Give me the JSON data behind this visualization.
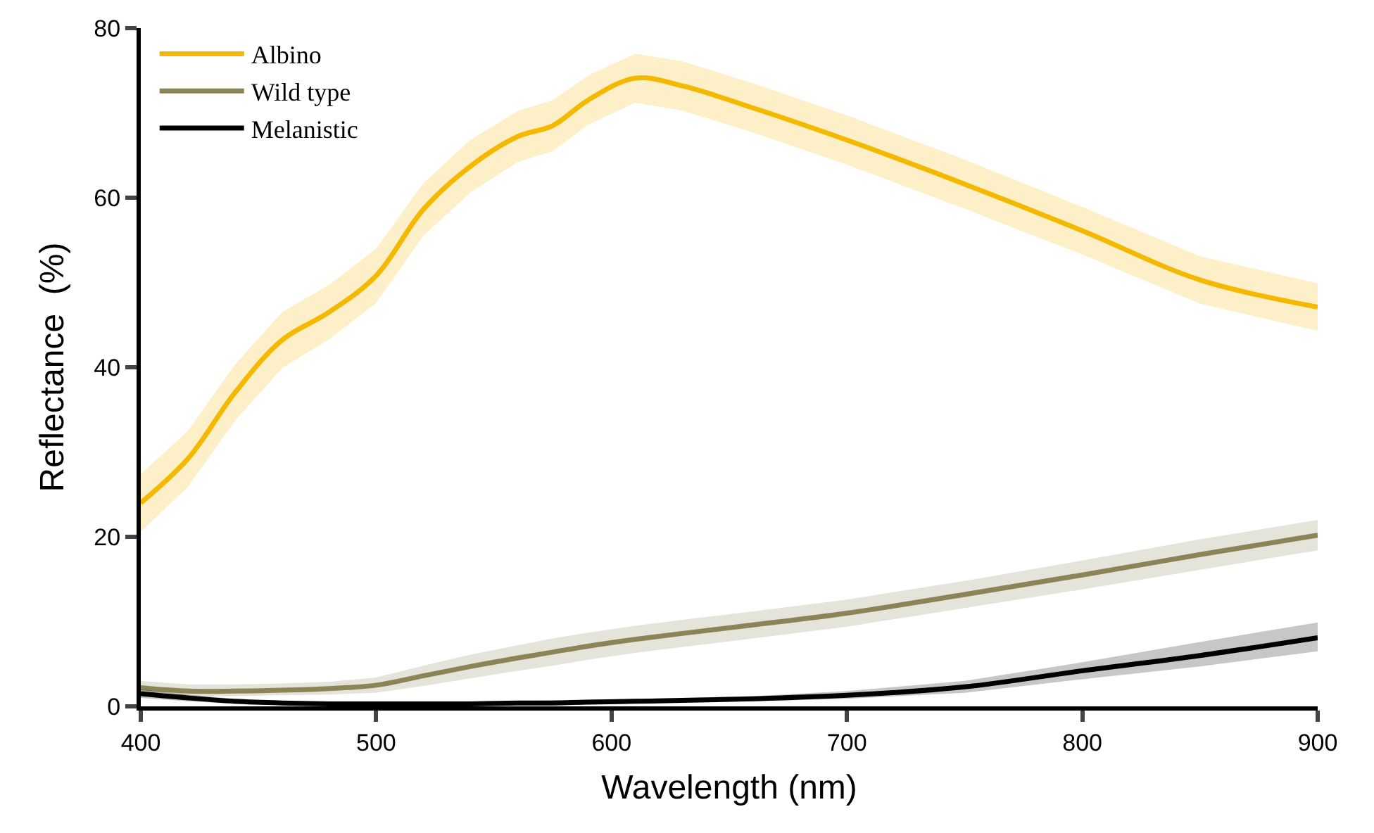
{
  "chart_data": {
    "type": "line",
    "xlabel": "Wavelength (nm)",
    "ylabel": "Reflectance  (%)",
    "x": [
      400,
      420,
      440,
      460,
      480,
      500,
      520,
      540,
      560,
      575,
      590,
      610,
      630,
      660,
      700,
      750,
      800,
      850,
      900
    ],
    "series": [
      {
        "name": "Albino",
        "color": "#f5b800",
        "values": [
          24.0,
          29.2,
          37.0,
          43.2,
          46.5,
          50.8,
          58.6,
          63.7,
          67.2,
          68.5,
          71.5,
          74.1,
          73.2,
          70.6,
          66.8,
          61.6,
          56.1,
          50.3,
          47.1
        ],
        "lower": [
          20.6,
          25.9,
          33.7,
          39.9,
          43.3,
          47.6,
          55.5,
          60.6,
          64.2,
          65.5,
          68.6,
          71.2,
          70.3,
          67.7,
          63.9,
          58.7,
          53.3,
          47.5,
          44.3
        ],
        "upper": [
          27.4,
          32.5,
          40.3,
          46.5,
          49.7,
          54.0,
          61.7,
          66.8,
          70.2,
          71.5,
          74.4,
          77.0,
          76.1,
          73.5,
          69.7,
          64.5,
          58.9,
          53.1,
          49.9
        ]
      },
      {
        "name": "Wild type",
        "color": "#8a8456",
        "values": [
          2.2,
          1.8,
          1.8,
          1.9,
          2.1,
          2.5,
          3.6,
          4.7,
          5.7,
          6.4,
          7.1,
          7.9,
          8.6,
          9.6,
          11.0,
          13.2,
          15.5,
          17.9,
          20.2
        ],
        "lower": [
          1.6,
          1.2,
          1.2,
          1.3,
          1.4,
          1.6,
          2.4,
          3.3,
          4.2,
          4.8,
          5.5,
          6.3,
          7.0,
          8.0,
          9.4,
          11.6,
          13.8,
          16.1,
          18.4
        ],
        "upper": [
          3.0,
          2.6,
          2.6,
          2.7,
          2.9,
          3.4,
          4.8,
          6.1,
          7.2,
          8.0,
          8.7,
          9.5,
          10.2,
          11.2,
          12.6,
          14.8,
          17.2,
          19.7,
          22.0
        ]
      },
      {
        "name": "Melanistic",
        "color": "#000000",
        "values": [
          1.5,
          1.0,
          0.6,
          0.4,
          0.3,
          0.3,
          0.3,
          0.3,
          0.4,
          0.4,
          0.5,
          0.6,
          0.7,
          0.9,
          1.3,
          2.3,
          4.2,
          6.0,
          8.1
        ],
        "lower": [
          1.0,
          0.6,
          0.3,
          0.2,
          0.1,
          0.1,
          0.1,
          0.1,
          0.2,
          0.2,
          0.3,
          0.4,
          0.5,
          0.6,
          0.9,
          1.6,
          3.2,
          4.7,
          6.5
        ],
        "upper": [
          2.0,
          1.4,
          0.9,
          0.6,
          0.5,
          0.5,
          0.5,
          0.5,
          0.6,
          0.7,
          0.8,
          0.9,
          1.0,
          1.2,
          1.8,
          3.0,
          5.2,
          7.6,
          9.9
        ]
      }
    ],
    "xlim": [
      400,
      900
    ],
    "xticks": [
      400,
      500,
      600,
      700,
      800,
      900
    ],
    "ylim": [
      0,
      80
    ],
    "yticks": [
      0,
      20,
      40,
      60,
      80
    ],
    "legend": "top left",
    "marker": "none",
    "line_style": "solid"
  }
}
